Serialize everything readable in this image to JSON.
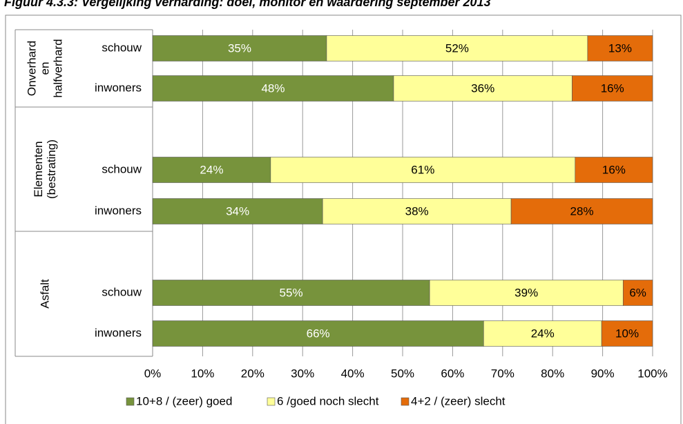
{
  "chart_data": {
    "type": "stacked-bar-horizontal",
    "title": "Figuur 4.3.3: Vergelijking verharding: doel, monitor en waardering september 2013",
    "groups": [
      {
        "label_lines": [
          "Onverhard",
          "en",
          "halfverhard"
        ]
      },
      {
        "label_lines": [
          "Elementen",
          "(bestrating)"
        ]
      },
      {
        "label_lines": [
          "Asfalt"
        ]
      }
    ],
    "categories": [
      "schouw",
      "inwoners",
      "schouw",
      "inwoners",
      "schouw",
      "inwoners"
    ],
    "series": [
      {
        "name": "10+8 / (zeer) goed",
        "color": "#77933c",
        "values": [
          34.8,
          48.2,
          23.6,
          34.0,
          55.4,
          66.2
        ],
        "value_labels": [
          "35%",
          "48%",
          "24%",
          "34%",
          "55%",
          "66%"
        ]
      },
      {
        "name": "6 /goed noch slecht",
        "color": "#ffff99",
        "values": [
          52.2,
          35.7,
          60.9,
          37.7,
          38.7,
          23.6
        ],
        "value_labels": [
          "52%",
          "36%",
          "61%",
          "38%",
          "39%",
          "24%"
        ]
      },
      {
        "name": "4+2 / (zeer) slecht",
        "color": "#e46c0a",
        "values": [
          13.0,
          16.1,
          15.5,
          28.3,
          5.9,
          10.2
        ],
        "value_labels": [
          "13%",
          "16%",
          "16%",
          "28%",
          "6%",
          "10%"
        ]
      }
    ],
    "xlim": [
      0,
      100
    ],
    "xticks": [
      {
        "value": 0,
        "label": "0%"
      },
      {
        "value": 10,
        "label": "10%"
      },
      {
        "value": 20,
        "label": "20%"
      },
      {
        "value": 30,
        "label": "30%"
      },
      {
        "value": 40,
        "label": "40%"
      },
      {
        "value": 50,
        "label": "50%"
      },
      {
        "value": 60,
        "label": "60%"
      },
      {
        "value": 70,
        "label": "70%"
      },
      {
        "value": 80,
        "label": "80%"
      },
      {
        "value": 90,
        "label": "90%"
      },
      {
        "value": 100,
        "label": "100%"
      }
    ],
    "grid": true,
    "legend": "bottom"
  }
}
